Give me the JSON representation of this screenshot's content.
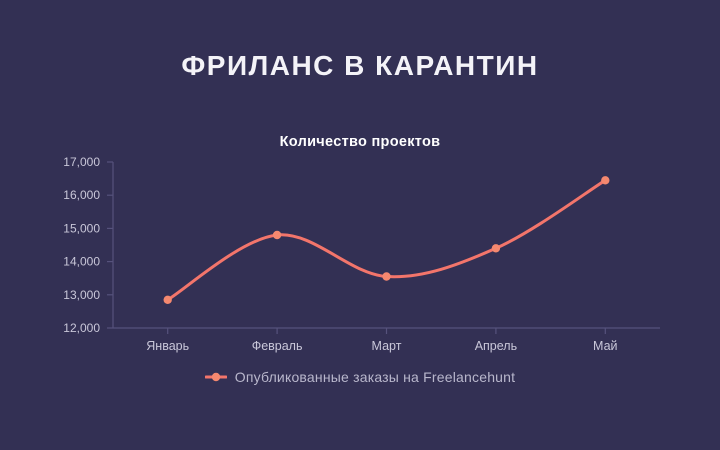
{
  "title": "ФРИЛАНС В КАРАНТИН",
  "colors": {
    "background": "#333054",
    "accent_line": "#f3756b",
    "accent_point": "#f5886f",
    "axis": "#56527c",
    "tick_label": "#c9c7d9",
    "legend_text": "#b9b7cc",
    "title_text": "#f4f3f8"
  },
  "chart_data": {
    "type": "line",
    "title": "Количество проектов",
    "categories": [
      "Январь",
      "Февраль",
      "Март",
      "Апрель",
      "Май"
    ],
    "series": [
      {
        "name": "Опубликованные заказы на Freelancehunt",
        "values": [
          12850,
          14800,
          13550,
          14400,
          16450
        ]
      }
    ],
    "xlabel": "",
    "ylabel": "",
    "ylim": [
      12000,
      17000
    ],
    "ytick_step": 1000,
    "ytick_labels": [
      "12,000",
      "13,000",
      "14,000",
      "15,000",
      "16,000",
      "17,000"
    ],
    "grid": false,
    "legend_position": "bottom",
    "smooth": true
  }
}
